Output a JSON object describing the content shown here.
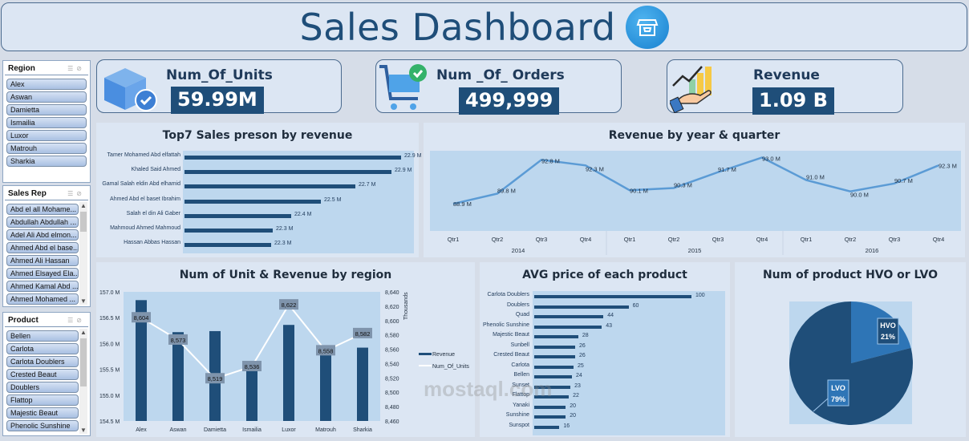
{
  "header": {
    "title": "Sales Dashboard",
    "icon": "shop-icon"
  },
  "slicers": {
    "region": {
      "title": "Region",
      "items": [
        "Alex",
        "Aswan",
        "Damietta",
        "Ismailia",
        "Luxor",
        "Matrouh",
        "Sharkia"
      ]
    },
    "sales_rep": {
      "title": "Sales Rep",
      "items": [
        "Abd el all Mohame...",
        "Abdullah Abdullah ...",
        "Adel Ali Abd elmon...",
        "Ahmed Abd el base...",
        "Ahmed Ali Hassan",
        "Ahmed Elsayed Ela...",
        "Ahmed Kamal Abd ...",
        "Ahmed Mohamed ..."
      ]
    },
    "product": {
      "title": "Product",
      "items": [
        "Bellen",
        "Carlota",
        "Carlota Doublers",
        "Crested Beaut",
        "Doublers",
        "Flattop",
        "Majestic Beaut",
        "Phenolic Sunshine"
      ]
    }
  },
  "kpis": [
    {
      "label": "Num_Of_Units",
      "value": "59.99M",
      "icon": "box-check-icon"
    },
    {
      "label": "Num _Of_ Orders",
      "value": "499,999",
      "icon": "cart-check-icon"
    },
    {
      "label": "Revenue",
      "value": "1.09 B",
      "icon": "growth-hand-icon"
    }
  ],
  "watermark": "mostaql.com",
  "chart_data": [
    {
      "type": "bar",
      "orientation": "horizontal",
      "title": "Top7 Sales preson by revenue",
      "categories": [
        "Tamer Mohamed Abd elfattah",
        "Khaled Said Ahmed",
        "Gamal Salah eldin Abd elhamid",
        "Ahmed Abd el baset Ibrahim",
        "Salah el din Ali Gaber",
        "Mahmoud Ahmed Mahmoud",
        "Hassan Abbas Hassan"
      ],
      "values": [
        22.9,
        22.9,
        22.7,
        22.5,
        22.4,
        22.3,
        22.3
      ],
      "labels": [
        "22.9 M",
        "22.9 M",
        "22.7 M",
        "22.5 M",
        "22.4 M",
        "22.3 M",
        "22.3 M"
      ],
      "unit": "M"
    },
    {
      "type": "line",
      "title": "Revenue by year & quarter",
      "categories": [
        "Qtr1",
        "Qtr2",
        "Qtr3",
        "Qtr4",
        "Qtr1",
        "Qtr2",
        "Qtr3",
        "Qtr4",
        "Qtr1",
        "Qtr2",
        "Qtr3",
        "Qtr4"
      ],
      "groups": [
        "2014",
        "2015",
        "2016"
      ],
      "values": [
        88.9,
        89.8,
        92.8,
        92.3,
        90.1,
        90.3,
        91.7,
        93.0,
        91.0,
        90.0,
        90.7,
        92.3
      ],
      "labels": [
        "88.9 M",
        "89.8 M",
        "92.8 M",
        "92.3 M",
        "90.1 M",
        "90.3 M",
        "91.7 M",
        "93.0 M",
        "91.0 M",
        "90.0 M",
        "90.7 M",
        "92.3 M"
      ]
    },
    {
      "type": "bar",
      "title": "Num of Unit & Revenue by region",
      "categories": [
        "Alex",
        "Aswan",
        "Damietta",
        "Ismailia",
        "Luxor",
        "Matrouh",
        "Sharkia"
      ],
      "series": [
        {
          "name": "Revenue",
          "type": "bar",
          "axis": "left",
          "values": [
            156.84,
            156.22,
            156.24,
            155.5,
            156.36,
            155.79,
            155.92
          ]
        },
        {
          "name": "Num_Of_Units",
          "type": "line",
          "axis": "right",
          "values": [
            8604,
            8573,
            8519,
            8536,
            8622,
            8558,
            8582
          ],
          "labels": [
            "8,604",
            "8,573",
            "8,519",
            "8,536",
            "8,622",
            "8,558",
            "8,582"
          ]
        }
      ],
      "left_ticks": [
        "157.0 M",
        "156.5 M",
        "156.0 M",
        "155.5 M",
        "155.0 M",
        "154.5 M"
      ],
      "right_ticks": [
        "8,640",
        "8,620",
        "8,600",
        "8,580",
        "8,560",
        "8,540",
        "8,520",
        "8,500",
        "8,480",
        "8,460"
      ],
      "ylim": [
        154.5,
        157.0
      ],
      "y2lim": [
        8460,
        8640
      ],
      "y2label": "Thousands",
      "legend": [
        "Revenue",
        "Num_Of_Units"
      ]
    },
    {
      "type": "bar",
      "orientation": "horizontal",
      "title": "AVG price of each product",
      "categories": [
        "Carlota Doublers",
        "Doublers",
        "Quad",
        "Phenolic Sunshine",
        "Majestic Beaut",
        "Sunbell",
        "Crested Beaut",
        "Carlota",
        "Bellen",
        "Sunset",
        "Flattop",
        "Yanaki",
        "Sunshine",
        "Sunspot"
      ],
      "values": [
        100,
        60,
        44,
        43,
        28,
        26,
        26,
        25,
        24,
        23,
        22,
        20,
        20,
        16
      ]
    },
    {
      "type": "pie",
      "title": "Num of product HVO or LVO",
      "categories": [
        "HVO",
        "LVO"
      ],
      "values": [
        21,
        79
      ],
      "labels": [
        "21%",
        "79%"
      ],
      "colors": [
        "#2e75b6",
        "#1f4e79"
      ]
    }
  ]
}
